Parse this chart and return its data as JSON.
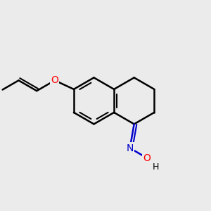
{
  "bg_color": "#ebebeb",
  "bond_color": "#000000",
  "N_color": "#0000cc",
  "O_color": "#ff0000",
  "lw": 1.8,
  "lw_inner": 1.5,
  "r": 1.0,
  "bx": -0.5,
  "by": 0.2,
  "xlim": [
    -4.5,
    4.5
  ],
  "ylim": [
    -4.0,
    4.0
  ]
}
